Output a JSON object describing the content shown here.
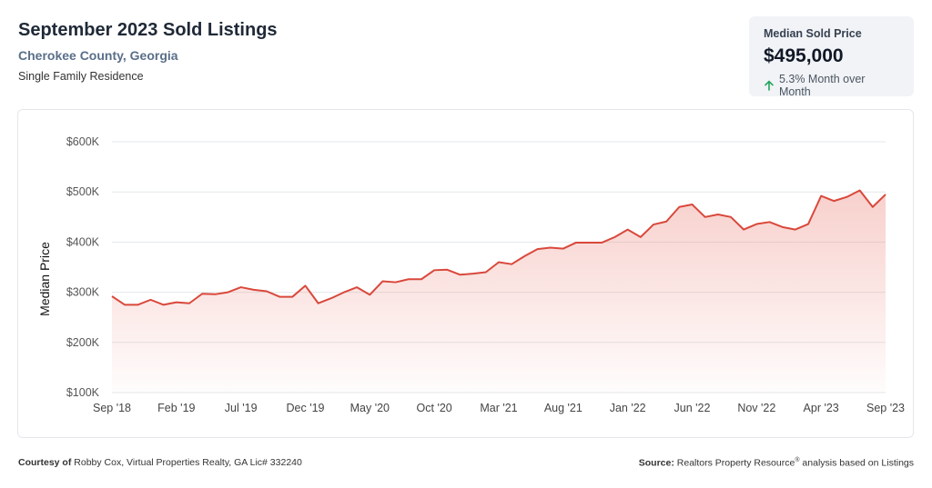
{
  "header": {
    "title": "September 2023 Sold Listings",
    "subtitle": "Cherokee County, Georgia",
    "property_type": "Single Family Residence"
  },
  "kpi": {
    "label": "Median Sold Price",
    "value": "$495,000",
    "change_text": "5.3% Month over Month",
    "change_color": "#22a35a"
  },
  "footer": {
    "courtesy_label": "Courtesy of",
    "courtesy_text": "Robby Cox, Virtual Properties Realty, GA Lic# 332240",
    "source_label": "Source:",
    "source_brand": "Realtors Property Resource",
    "source_mark": "®",
    "source_text": "analysis based on Listings"
  },
  "chart_data": {
    "type": "area",
    "title": "",
    "xlabel": "",
    "ylabel": "Median Price",
    "ylim": [
      100000,
      600000
    ],
    "y_ticks": [
      100000,
      200000,
      300000,
      400000,
      500000,
      600000
    ],
    "y_tick_labels": [
      "$100K",
      "$200K",
      "$300K",
      "$400K",
      "$500K",
      "$600K"
    ],
    "x_tick_labels": [
      "Sep '18",
      "Feb '19",
      "Jul '19",
      "Dec '19",
      "May '20",
      "Oct '20",
      "Mar '21",
      "Aug '21",
      "Jan '22",
      "Jun '22",
      "Nov '22",
      "Apr '23",
      "Sep '23"
    ],
    "x_tick_every": 5,
    "grid": true,
    "line_color": "#d9483b",
    "series": [
      {
        "values": [
          292000,
          275000,
          275000,
          285000,
          275000,
          280000,
          278000,
          297000,
          296000,
          300000,
          310000,
          305000,
          302000,
          291000,
          291000,
          313000,
          278000,
          288000,
          300000,
          310000,
          295000,
          322000,
          320000,
          326000,
          326000,
          344000,
          345000,
          335000,
          337000,
          340000,
          360000,
          356000,
          372000,
          386000,
          389000,
          387000,
          399000,
          399000,
          399000,
          410000,
          425000,
          410000,
          435000,
          441000,
          470000,
          475000,
          450000,
          455000,
          450000,
          425000,
          436000,
          440000,
          430000,
          425000,
          436000,
          492000,
          482000,
          490000,
          503000,
          470000,
          495000
        ]
      }
    ]
  }
}
